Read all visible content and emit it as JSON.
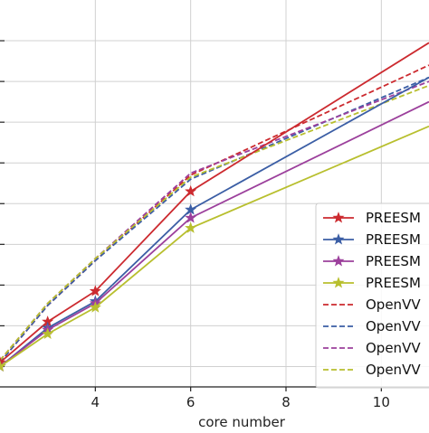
{
  "chart_data": {
    "type": "line",
    "title": "",
    "xlabel": "core number",
    "ylabel": "",
    "xlim": [
      2,
      11
    ],
    "ylim": [
      0.5,
      10
    ],
    "x_ticks": [
      4,
      6,
      8,
      10
    ],
    "x_tick_labels": [
      "4",
      "6",
      "8",
      "10"
    ],
    "grid": true,
    "legend_position": "lower-right",
    "series": [
      {
        "name": "PREESM",
        "color": "#cc2a2f",
        "dash": "solid",
        "marker": "star",
        "x": [
          2,
          3,
          4,
          6,
          11
        ],
        "y": [
          1.1,
          2.1,
          2.85,
          5.3,
          8.95
        ]
      },
      {
        "name": "PREESM",
        "color": "#3b5ea5",
        "dash": "solid",
        "marker": "star",
        "x": [
          2,
          3,
          4,
          6,
          11
        ],
        "y": [
          1.0,
          1.95,
          2.6,
          4.85,
          8.1
        ]
      },
      {
        "name": "PREESM",
        "color": "#9c409c",
        "dash": "solid",
        "marker": "star",
        "x": [
          2,
          3,
          4,
          6,
          11
        ],
        "y": [
          1.0,
          1.9,
          2.55,
          4.65,
          7.5
        ]
      },
      {
        "name": "PREESM",
        "color": "#b8bf2e",
        "dash": "solid",
        "marker": "star",
        "x": [
          2,
          3,
          4,
          6,
          11
        ],
        "y": [
          1.0,
          1.8,
          2.45,
          4.4,
          6.9
        ]
      },
      {
        "name": "OpenVV",
        "color": "#cc2a2f",
        "dash": "dashed",
        "marker": "none",
        "x": [
          2,
          3,
          4,
          6,
          11
        ],
        "y": [
          1.1,
          2.5,
          3.6,
          5.7,
          8.4
        ]
      },
      {
        "name": "OpenVV",
        "color": "#3b5ea5",
        "dash": "dashed",
        "marker": "none",
        "x": [
          2,
          3,
          4,
          6,
          11
        ],
        "y": [
          1.1,
          2.5,
          3.6,
          5.6,
          8.1
        ]
      },
      {
        "name": "OpenVV",
        "color": "#9c409c",
        "dash": "dashed",
        "marker": "none",
        "x": [
          2,
          3,
          4,
          6,
          11
        ],
        "y": [
          1.15,
          2.55,
          3.65,
          5.75,
          8.0
        ]
      },
      {
        "name": "OpenVV",
        "color": "#b8bf2e",
        "dash": "dashed",
        "marker": "none",
        "x": [
          2,
          3,
          4,
          6,
          11
        ],
        "y": [
          1.15,
          2.55,
          3.65,
          5.65,
          7.9
        ]
      }
    ]
  }
}
